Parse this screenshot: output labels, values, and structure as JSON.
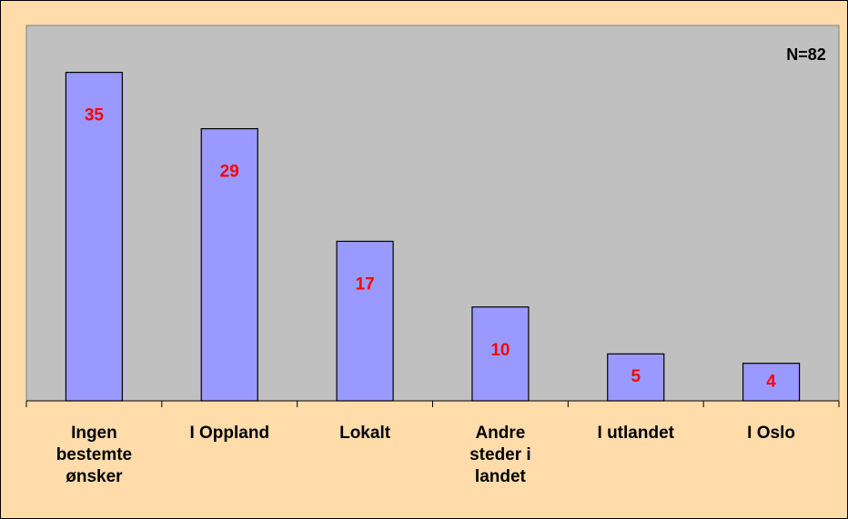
{
  "chart_data": {
    "type": "bar",
    "annotation": "N=82",
    "categories": [
      "Ingen bestemte ønsker",
      "I Oppland",
      "Lokalt",
      "Andre steder i landet",
      "I utlandet",
      "I Oslo"
    ],
    "values": [
      35,
      29,
      17,
      10,
      5,
      4
    ],
    "color": "#9999FF",
    "label_color": "#FF0000",
    "ylim": [
      0,
      40
    ]
  }
}
